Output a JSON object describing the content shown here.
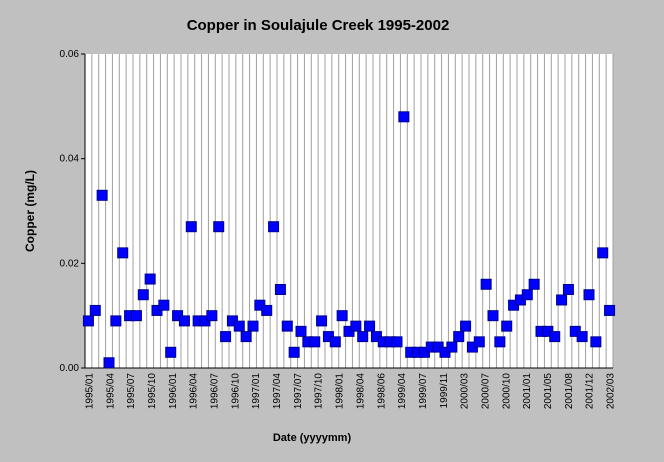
{
  "chart_data": {
    "type": "scatter",
    "title": "Copper in Soulajule Creek 1995-2002",
    "xlabel": "Date (yyyymm)",
    "ylabel": "Copper (mg/L)",
    "ylim": [
      0,
      0.06
    ],
    "y_ticks": [
      "0.00",
      "0.02",
      "0.04",
      "0.06"
    ],
    "x_tick_labels": [
      "1995/01",
      "1995/04",
      "1995/07",
      "1995/10",
      "1996/01",
      "1996/04",
      "1996/07",
      "1996/10",
      "1997/01",
      "1997/04",
      "1997/07",
      "1997/10",
      "1998/01",
      "1998/04",
      "1998/06",
      "1999/04",
      "1999/07",
      "1999/11",
      "2000/03",
      "2000/07",
      "2000/10",
      "2001/01",
      "2001/05",
      "2001/08",
      "2001/12",
      "2002/03"
    ],
    "grid": "vertical",
    "legend": "none",
    "marker_color": "#0000ff",
    "background_color": "#c0c0c0",
    "plot_background": "#ffffff",
    "values": [
      0.009,
      0.011,
      0.033,
      0.001,
      0.009,
      0.022,
      0.01,
      0.01,
      0.014,
      0.017,
      0.011,
      0.012,
      0.003,
      0.01,
      0.009,
      0.027,
      0.009,
      0.009,
      0.01,
      0.027,
      0.006,
      0.009,
      0.008,
      0.006,
      0.008,
      0.012,
      0.011,
      0.027,
      0.015,
      0.008,
      0.003,
      0.007,
      0.005,
      0.005,
      0.009,
      0.006,
      0.005,
      0.01,
      0.007,
      0.008,
      0.006,
      0.008,
      0.006,
      0.005,
      0.005,
      0.005,
      0.048,
      0.003,
      0.003,
      0.003,
      0.004,
      0.004,
      0.003,
      0.004,
      0.006,
      0.008,
      0.004,
      0.005,
      0.016,
      0.01,
      0.005,
      0.008,
      0.012,
      0.013,
      0.014,
      0.016,
      0.007,
      0.007,
      0.006,
      0.013,
      0.015,
      0.007,
      0.006,
      0.014,
      0.005,
      0.022,
      0.011
    ]
  }
}
